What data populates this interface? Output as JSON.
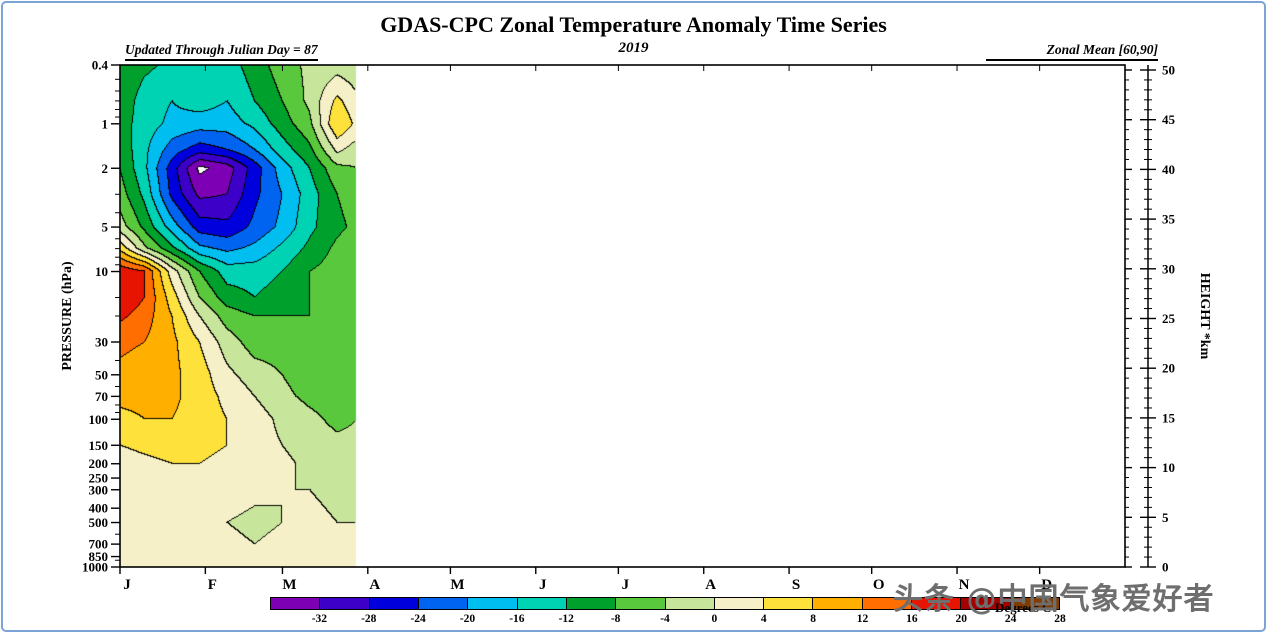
{
  "title": "GDAS-CPC Zonal Temperature Anomaly Time Series",
  "header": {
    "updated": "Updated Through Julian Day =  87",
    "year": "2019",
    "zonal_mean": "Zonal Mean [60,90]"
  },
  "axes": {
    "pressure_label": "PRESSURE (hPa)",
    "height_label": "HEIGHT *km",
    "pressure_ticks": [
      0.4,
      1,
      2,
      5,
      10,
      30,
      50,
      70,
      100,
      150,
      200,
      250,
      300,
      400,
      500,
      700,
      850,
      1000
    ],
    "pressure_minor_ticks": [
      0.5,
      0.6,
      0.7,
      0.8,
      0.9,
      3,
      4,
      6,
      7,
      8,
      9,
      15,
      20,
      40,
      60,
      80,
      90,
      600,
      900
    ],
    "pressure_range": [
      0.4,
      1000
    ],
    "height_ticks": [
      0,
      5,
      10,
      15,
      20,
      25,
      30,
      35,
      40,
      45,
      50
    ],
    "height_minor_step": 1,
    "height_range": [
      0,
      50
    ],
    "months": [
      "J",
      "F",
      "M",
      "A",
      "M",
      "J",
      "J",
      "A",
      "S",
      "O",
      "N",
      "D"
    ],
    "month_start_days": [
      1,
      32,
      60,
      91,
      121,
      152,
      182,
      213,
      244,
      274,
      305,
      335
    ],
    "days_in_year": 365
  },
  "colorbar": {
    "labels": [
      "-32",
      "-28",
      "-24",
      "-20",
      "-16",
      "-12",
      "-8",
      "-4",
      "0",
      "4",
      "8",
      "12",
      "16",
      "20",
      "24",
      "28"
    ],
    "colors": [
      "#7D00B4",
      "#3C00C8",
      "#0000DC",
      "#0064F0",
      "#00BEF0",
      "#00D2B4",
      "#00A02D",
      "#5AC83C",
      "#C8E69B",
      "#F5F0C8",
      "#FFE13C",
      "#FFAF00",
      "#FF6E00",
      "#E61400",
      "#A50000",
      "#823C00"
    ],
    "min": -36,
    "max": 28,
    "step": 4,
    "below_min_color": "#FFFFFF",
    "units_label": "Degrees C"
  },
  "watermark": "头条 @中国气象爱好者",
  "chart_data": {
    "type": "filled_contour",
    "title": "GDAS-CPC Zonal Temperature Anomaly Time Series, 2019, Zonal Mean [60,90]",
    "xlabel": "Month of 2019",
    "ylabel": "Pressure (hPa), log scale 0.4 - 1000",
    "y2label": "Height (km), 0 - 50",
    "contour_interval_degC": 4,
    "data_end_day": 87,
    "x_days": [
      1,
      10,
      20,
      30,
      40,
      50,
      60,
      70,
      80,
      87
    ],
    "pressure_levels": [
      0.4,
      0.7,
      1,
      1.5,
      2,
      3,
      5,
      7,
      10,
      15,
      20,
      30,
      50,
      70,
      100,
      150,
      200,
      300,
      500,
      700,
      1000
    ],
    "anomaly_degC": [
      [
        -8,
        -11,
        -13,
        -12,
        -14,
        -10,
        -6,
        -3,
        -2,
        -3
      ],
      [
        -9,
        -14,
        -16,
        -14,
        -16,
        -12,
        -8,
        -3,
        5,
        1
      ],
      [
        -10,
        -14,
        -17,
        -18,
        -18,
        -15,
        -10,
        -5,
        8,
        3
      ],
      [
        -9,
        -15,
        -22,
        -26,
        -24,
        -20,
        -14,
        -9,
        1,
        -2
      ],
      [
        -8,
        -15,
        -26,
        -37,
        -34,
        -26,
        -18,
        -12,
        -5,
        -4
      ],
      [
        -6,
        -13,
        -25,
        -33,
        -32,
        -25,
        -20,
        -14,
        -8,
        -6
      ],
      [
        -2,
        -9,
        -18,
        -26,
        -27,
        -23,
        -19,
        -13,
        -9,
        -7
      ],
      [
        7,
        -3,
        -11,
        -19,
        -21,
        -19,
        -15,
        -11,
        -7,
        -5
      ],
      [
        19,
        16,
        2,
        -8,
        -14,
        -14,
        -12,
        -8,
        -6,
        -4
      ],
      [
        20,
        16,
        6,
        -4,
        -10,
        -12,
        -10,
        -8,
        -6,
        -4
      ],
      [
        17,
        14,
        8,
        0,
        -6,
        -8,
        -8,
        -8,
        -6,
        -4
      ],
      [
        13,
        12,
        9,
        4,
        -2,
        -6,
        -6,
        -6,
        -6,
        -4
      ],
      [
        11,
        10,
        9,
        6,
        1,
        -2,
        -4,
        -6,
        -6,
        -5
      ],
      [
        9,
        9,
        9,
        6,
        3,
        0,
        -3,
        -5,
        -6,
        -5
      ],
      [
        7,
        8,
        8,
        6,
        4,
        2,
        -1,
        -3,
        -5,
        -4
      ],
      [
        4,
        5,
        6,
        5,
        4,
        2,
        0,
        -2,
        -3,
        -3
      ],
      [
        2,
        3,
        4,
        4,
        3,
        2,
        1,
        -1,
        -2,
        -2
      ],
      [
        1,
        1,
        2,
        2,
        2,
        1,
        0,
        0,
        -1,
        -1
      ],
      [
        1,
        0,
        1,
        1,
        0,
        -1,
        0,
        1,
        0,
        0
      ],
      [
        1,
        1,
        0,
        1,
        1,
        0,
        1,
        1,
        0,
        1
      ],
      [
        2,
        1,
        1,
        2,
        1,
        1,
        1,
        2,
        1,
        1
      ]
    ]
  }
}
